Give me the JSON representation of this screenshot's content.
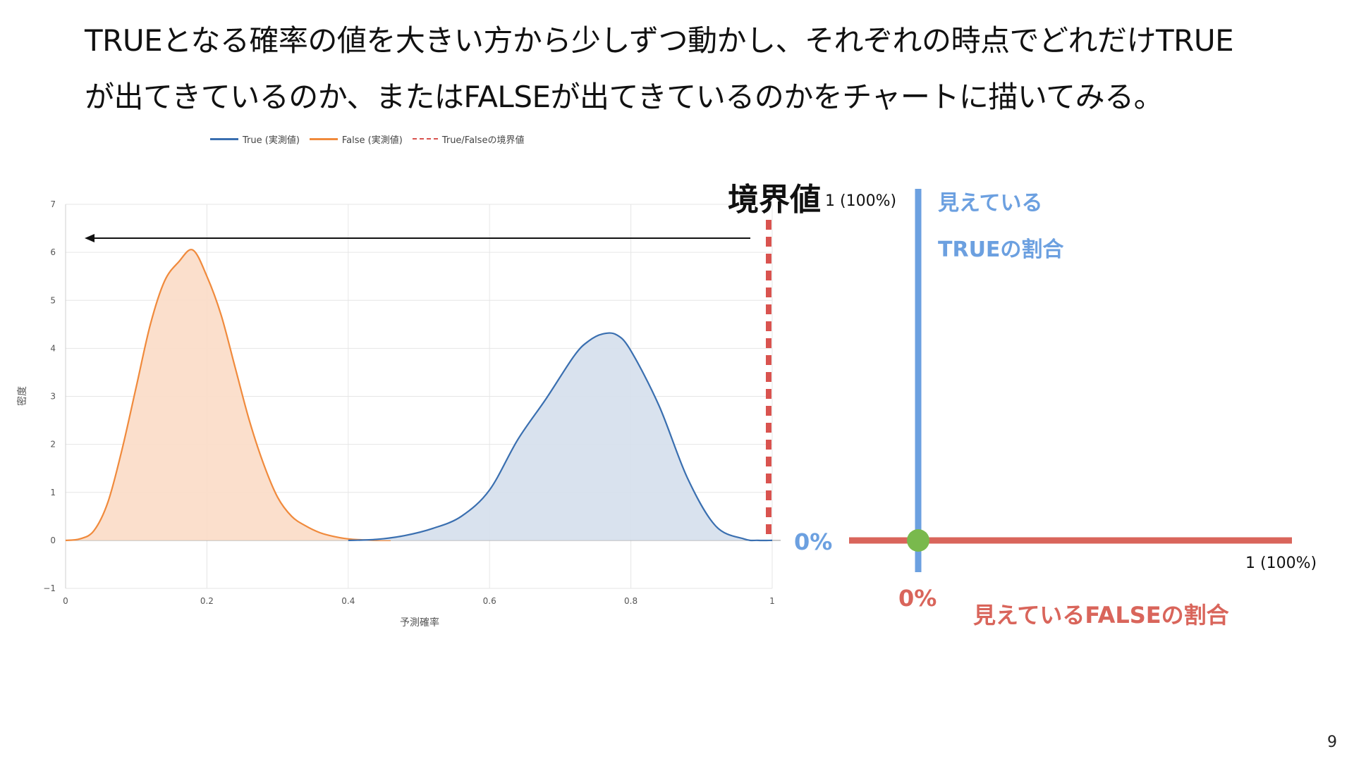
{
  "slide": {
    "heading_line1": "TRUEとなる確率の値を大きい方から少しずつ動かし、それぞれの時点でどれだけTRUE",
    "heading_line2": "が出てきているのか、またはFALSEが出てきているのかをチャートに描いてみる。",
    "page_number": "9"
  },
  "chart_data": {
    "type": "area",
    "xlabel": "予測確率",
    "ylabel": "密度",
    "xlim": [
      0,
      1
    ],
    "ylim": [
      -1,
      7
    ],
    "x_ticks": [
      "0",
      "0.2",
      "0.4",
      "0.6",
      "0.8",
      "1"
    ],
    "y_ticks": [
      "−1",
      "0",
      "1",
      "2",
      "3",
      "4",
      "5",
      "6",
      "7"
    ],
    "grid": true,
    "legend_position": "top",
    "threshold": 0.995,
    "series": [
      {
        "name": "True (実測値)",
        "color": "#3a6fb0",
        "fill": "#d5dfec",
        "x": [
          0.4,
          0.44,
          0.48,
          0.52,
          0.56,
          0.6,
          0.64,
          0.68,
          0.72,
          0.74,
          0.76,
          0.78,
          0.8,
          0.84,
          0.88,
          0.92,
          0.96,
          0.98,
          1.0
        ],
        "y": [
          0.0,
          0.02,
          0.1,
          0.25,
          0.5,
          1.05,
          2.1,
          2.95,
          3.85,
          4.15,
          4.3,
          4.28,
          3.95,
          2.8,
          1.3,
          0.3,
          0.03,
          0.0,
          0.0
        ]
      },
      {
        "name": "False (実測値)",
        "color": "#f08a3c",
        "fill": "#fbdcc6",
        "x": [
          0.0,
          0.02,
          0.04,
          0.06,
          0.08,
          0.1,
          0.12,
          0.14,
          0.16,
          0.18,
          0.2,
          0.22,
          0.24,
          0.26,
          0.28,
          0.3,
          0.32,
          0.34,
          0.36,
          0.38,
          0.4,
          0.42,
          0.44,
          0.46
        ],
        "y": [
          0.0,
          0.03,
          0.2,
          0.8,
          1.9,
          3.2,
          4.5,
          5.4,
          5.8,
          6.05,
          5.5,
          4.7,
          3.6,
          2.5,
          1.6,
          0.9,
          0.5,
          0.3,
          0.16,
          0.08,
          0.03,
          0.01,
          0.0,
          0.0
        ]
      }
    ],
    "legend": [
      "True (実測値)",
      "False (実測値)",
      "True/Falseの境界値"
    ]
  },
  "annotations": {
    "threshold_label": "境界値",
    "top_value": "1 (100%)",
    "bottom_value": "0%",
    "true_label_1": "見えている",
    "true_label_2": "TRUEの割合",
    "x_end_value": "1 (100%)",
    "x_origin_value": "0%",
    "false_label": "見えているFALSEの割合"
  },
  "colors": {
    "true_axis": "#6ca0e0",
    "false_axis": "#d9655b",
    "origin_point": "#79b94d",
    "threshold": "#d9534f"
  }
}
